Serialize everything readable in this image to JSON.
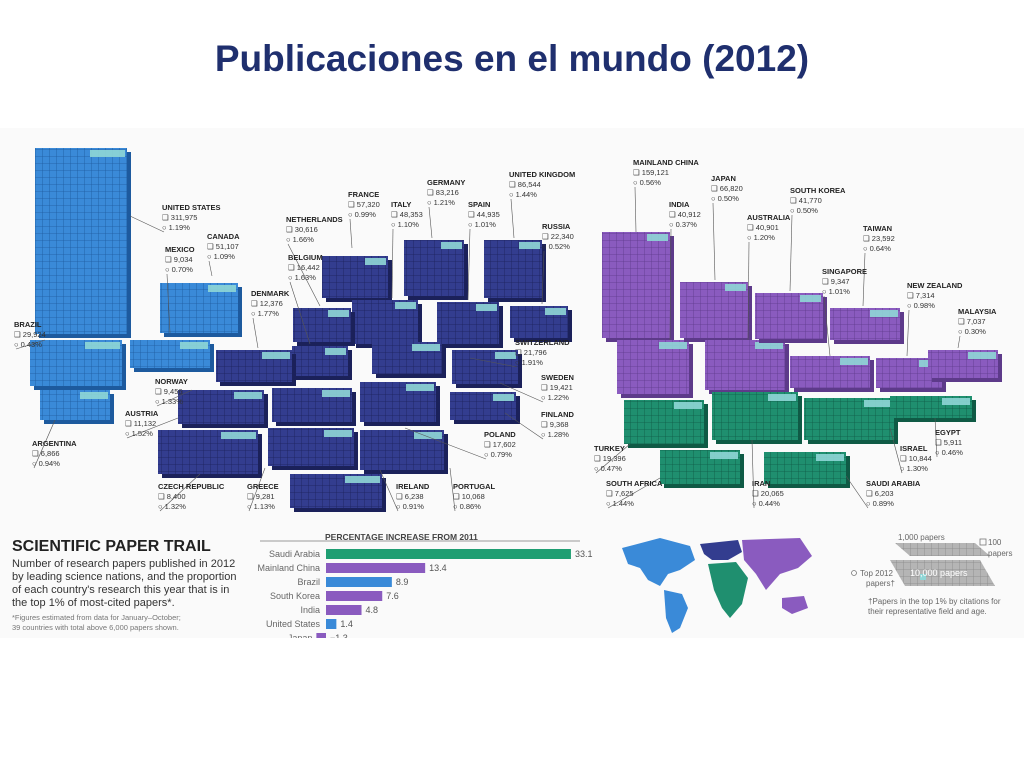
{
  "title": "Publicaciones en el mundo (2012)",
  "colors": {
    "americas": "#3a8ad8",
    "europe": "#333d8f",
    "asia": "#8a5bbf",
    "africa_me": "#1f8f6f",
    "top": "#8fd6d6"
  },
  "countries": [
    {
      "name": "UNITED STATES",
      "papers": "311,975",
      "top": "1.19%",
      "region": "americas"
    },
    {
      "name": "CANADA",
      "papers": "51,107",
      "top": "1.09%",
      "region": "americas"
    },
    {
      "name": "MEXICO",
      "papers": "9,034",
      "top": "0.70%",
      "region": "americas"
    },
    {
      "name": "BRAZIL",
      "papers": "29,924",
      "top": "0.43%",
      "region": "americas"
    },
    {
      "name": "ARGENTINA",
      "papers": "6,866",
      "top": "0.94%",
      "region": "americas"
    },
    {
      "name": "FRANCE",
      "papers": "57,320",
      "top": "0.99%",
      "region": "europe"
    },
    {
      "name": "ITALY",
      "papers": "48,353",
      "top": "1.10%",
      "region": "europe"
    },
    {
      "name": "GERMANY",
      "papers": "83,216",
      "top": "1.21%",
      "region": "europe"
    },
    {
      "name": "SPAIN",
      "papers": "44,935",
      "top": "1.01%",
      "region": "europe"
    },
    {
      "name": "UNITED KINGDOM",
      "papers": "86,544",
      "top": "1.44%",
      "region": "europe"
    },
    {
      "name": "RUSSIA",
      "papers": "22,340",
      "top": "0.52%",
      "region": "europe"
    },
    {
      "name": "NETHERLANDS",
      "papers": "30,616",
      "top": "1.66%",
      "region": "europe"
    },
    {
      "name": "BELGIUM",
      "papers": "16,442",
      "top": "1.63%",
      "region": "europe"
    },
    {
      "name": "DENMARK",
      "papers": "12,376",
      "top": "1.77%",
      "region": "europe"
    },
    {
      "name": "SWITZERLAND",
      "papers": "21,796",
      "top": "1.91%",
      "region": "europe"
    },
    {
      "name": "SWEDEN",
      "papers": "19,421",
      "top": "1.22%",
      "region": "europe"
    },
    {
      "name": "FINLAND",
      "papers": "9,368",
      "top": "1.28%",
      "region": "europe"
    },
    {
      "name": "NORWAY",
      "papers": "9,456",
      "top": "1.33%",
      "region": "europe"
    },
    {
      "name": "AUSTRIA",
      "papers": "11,132",
      "top": "1.52%",
      "region": "europe"
    },
    {
      "name": "POLAND",
      "papers": "17,602",
      "top": "0.79%",
      "region": "europe"
    },
    {
      "name": "CZECH REPUBLIC",
      "papers": "8,400",
      "top": "1.32%",
      "region": "europe"
    },
    {
      "name": "GREECE",
      "papers": "9,281",
      "top": "1.13%",
      "region": "europe"
    },
    {
      "name": "IRELAND",
      "papers": "6,238",
      "top": "0.91%",
      "region": "europe"
    },
    {
      "name": "PORTUGAL",
      "papers": "10,068",
      "top": "0.86%",
      "region": "europe"
    },
    {
      "name": "MAINLAND CHINA",
      "papers": "159,121",
      "top": "0.56%",
      "region": "asia"
    },
    {
      "name": "INDIA",
      "papers": "40,912",
      "top": "0.37%",
      "region": "asia"
    },
    {
      "name": "JAPAN",
      "papers": "66,820",
      "top": "0.50%",
      "region": "asia"
    },
    {
      "name": "AUSTRALIA",
      "papers": "40,901",
      "top": "1.20%",
      "region": "asia"
    },
    {
      "name": "SOUTH KOREA",
      "papers": "41,770",
      "top": "0.50%",
      "region": "asia"
    },
    {
      "name": "TAIWAN",
      "papers": "23,592",
      "top": "0.64%",
      "region": "asia"
    },
    {
      "name": "SINGAPORE",
      "papers": "9,347",
      "top": "1.01%",
      "region": "asia"
    },
    {
      "name": "NEW ZEALAND",
      "papers": "7,314",
      "top": "0.98%",
      "region": "asia"
    },
    {
      "name": "MALAYSIA",
      "papers": "7,037",
      "top": "0.30%",
      "region": "asia"
    },
    {
      "name": "TURKEY",
      "papers": "19,396",
      "top": "0.47%",
      "region": "africa_me"
    },
    {
      "name": "SOUTH AFRICA",
      "papers": "7,625",
      "top": "1.44%",
      "region": "africa_me"
    },
    {
      "name": "IRAN",
      "papers": "20,065",
      "top": "0.44%",
      "region": "africa_me"
    },
    {
      "name": "ISRAEL",
      "papers": "10,844",
      "top": "1.30%",
      "region": "africa_me"
    },
    {
      "name": "SAUDI ARABIA",
      "papers": "6,203",
      "top": "0.89%",
      "region": "africa_me"
    },
    {
      "name": "EGYPT",
      "papers": "5,911",
      "top": "0.46%",
      "region": "africa_me"
    }
  ],
  "trail": {
    "title": "SCIENTIFIC PAPER TRAIL",
    "desc": [
      "Number of research papers published in 2012",
      "by leading science nations, and the proportion",
      "of each country's research this year that is in",
      "the top 1% of most-cited papers*."
    ],
    "foot": [
      "*Figures estimated from data for January–October;",
      "39 countries with total above 6,000 papers shown."
    ]
  },
  "chart_data": {
    "type": "bar",
    "title": "PERCENTAGE INCREASE FROM 2011",
    "categories": [
      "Saudi Arabia",
      "Mainland China",
      "Brazil",
      "South Korea",
      "India",
      "United States",
      "Japan"
    ],
    "values": [
      33.1,
      13.4,
      8.9,
      7.6,
      4.8,
      1.4,
      -1.3
    ],
    "value_labels": [
      "33.1",
      "13.4",
      "8.9",
      "7.6",
      "4.8",
      "1.4",
      "−1.3"
    ],
    "bar_colors": [
      "#1f9e72",
      "#8a5bbf",
      "#3a8ad8",
      "#8a5bbf",
      "#8a5bbf",
      "#3a8ad8",
      "#8a5bbf"
    ]
  },
  "legend": {
    "thousand": "1,000 papers",
    "ten_thousand": "10,000 papers",
    "hundred": "100",
    "papers": "papers",
    "top2012_a": "Top 2012",
    "top2012_b": "papers†",
    "note": [
      "†Papers in the top 1% by citations for",
      "their representative field and age."
    ]
  }
}
